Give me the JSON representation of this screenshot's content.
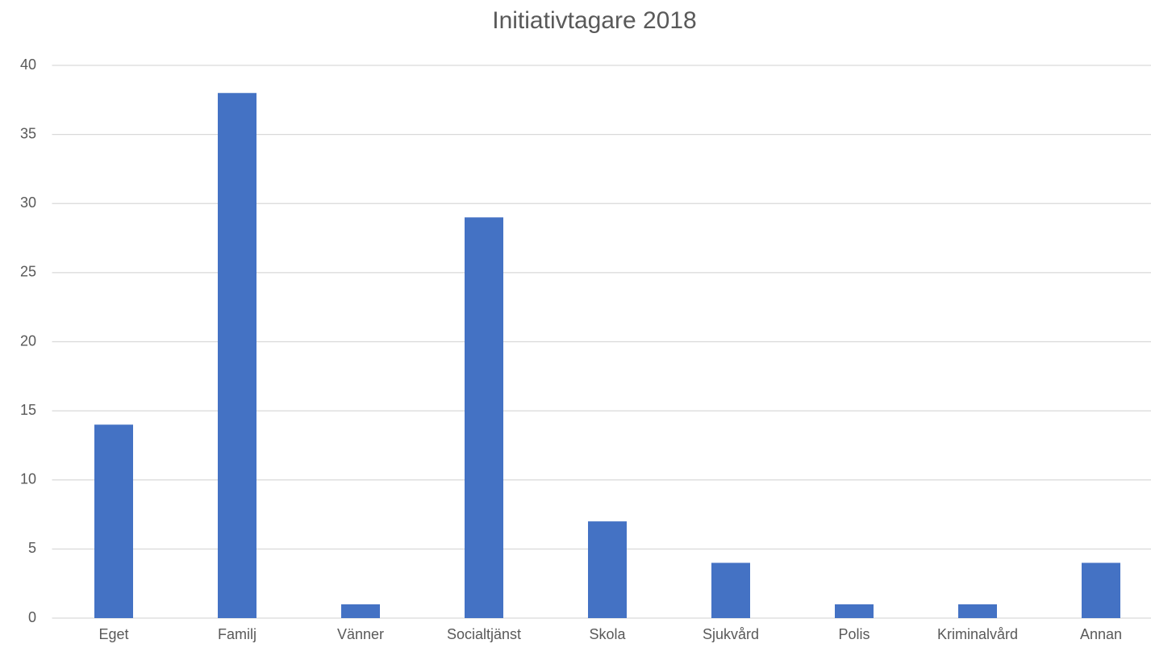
{
  "chart_data": {
    "type": "bar",
    "title": "Initiativtagare 2018",
    "categories": [
      "Eget",
      "Familj",
      "Vänner",
      "Socialtjänst",
      "Skola",
      "Sjukvård",
      "Polis",
      "Kriminalvård",
      "Annan"
    ],
    "values": [
      14,
      38,
      1,
      29,
      7,
      4,
      1,
      1,
      4
    ],
    "color": "#4472c4",
    "ylim": [
      0,
      40
    ],
    "yticks": [
      0,
      5,
      10,
      15,
      20,
      25,
      30,
      35,
      40
    ],
    "grid": true
  }
}
